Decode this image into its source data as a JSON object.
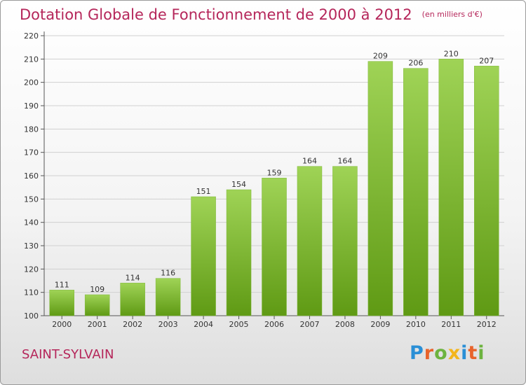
{
  "title": "Dotation Globale de Fonctionnement de 2000 à 2012",
  "subtitle": "(en milliers d'€)",
  "commune": "SAINT-SYLVAIN",
  "logo": {
    "text": "Proxiti",
    "letters": [
      {
        "ch": "P",
        "color": "#2a8fd6"
      },
      {
        "ch": "r",
        "color": "#e8632b"
      },
      {
        "ch": "o",
        "color": "#6db33f"
      },
      {
        "ch": "x",
        "color": "#f3b51c"
      },
      {
        "ch": "i",
        "color": "#2a8fd6"
      },
      {
        "ch": "t",
        "color": "#e8632b"
      },
      {
        "ch": "i",
        "color": "#6db33f"
      }
    ]
  },
  "colors": {
    "title": "#b5265a",
    "bar_top": "#9fd356",
    "bar_bottom": "#5f9a14",
    "grid": "#d0d0d0"
  },
  "chart_data": {
    "type": "bar",
    "title": "Dotation Globale de Fonctionnement de 2000 à 2012",
    "subtitle": "(en milliers d'€)",
    "xlabel": "",
    "ylabel": "",
    "categories": [
      "2000",
      "2001",
      "2002",
      "2003",
      "2004",
      "2005",
      "2006",
      "2007",
      "2008",
      "2009",
      "2010",
      "2011",
      "2012"
    ],
    "values": [
      111,
      109,
      114,
      116,
      151,
      154,
      159,
      164,
      164,
      209,
      206,
      210,
      207
    ],
    "ylim": [
      100,
      220
    ],
    "yticks": [
      100,
      110,
      120,
      130,
      140,
      150,
      160,
      170,
      180,
      190,
      200,
      210,
      220
    ],
    "grid": true,
    "legend": "none"
  }
}
